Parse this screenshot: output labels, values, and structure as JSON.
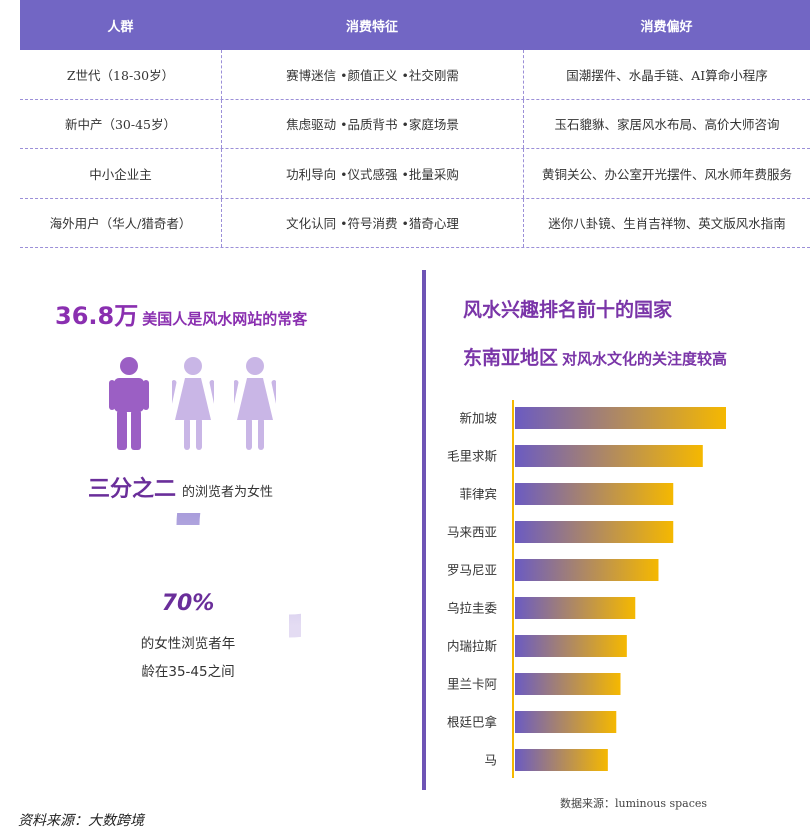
{
  "table": {
    "headers": [
      "人群",
      "消费特征",
      "消费偏好"
    ],
    "rows": [
      [
        "Z世代（18-30岁）",
        "赛博迷信 •颜值正义 •社交刚需",
        "国潮摆件、水晶手链、AI算命小程序"
      ],
      [
        "新中产（30-45岁）",
        "焦虑驱动 •品质背书 •家庭场景",
        "玉石貔貅、家居风水布局、高价大师咨询"
      ],
      [
        "中小企业主",
        "功利导向 •仪式感强 •批量采购",
        "黄铜关公、办公室开光摆件、风水师年费服务"
      ],
      [
        "海外用户（华人/猎奇者）",
        "文化认同 •符号消费 •猎奇心理",
        "迷你八卦镜、生肖吉祥物、英文版风水指南"
      ]
    ]
  },
  "left": {
    "stat_number": "36.8万",
    "stat_text": "美国人是风水网站的常客",
    "people_icons": [
      "male-icon",
      "female-icon",
      "female-icon"
    ],
    "fraction_big": "三分之二",
    "fraction_text": "的浏览者为女性",
    "ring_percent": "70%",
    "ring_value": 0.7,
    "ring_line1": "的女性浏览者年",
    "ring_line2": "龄在35-45之间"
  },
  "right": {
    "title1": "风水兴趣排名前十的国家",
    "title2_big": "东南亚地区",
    "title2_small": "对风水文化的关注度较高"
  },
  "chart_data": {
    "type": "bar",
    "orientation": "horizontal",
    "title": "风水兴趣排名前十的国家",
    "categories": [
      "新加坡",
      "毛里求斯",
      "菲律宾",
      "马来西亚",
      "罗马尼亚",
      "乌拉圭委",
      "内瑞拉斯",
      "里兰卡阿",
      "根廷巴拿",
      "马"
    ],
    "values": [
      100,
      89,
      75,
      75,
      68,
      57,
      53,
      50,
      48,
      44
    ],
    "xlim": [
      0,
      100
    ],
    "grid": false,
    "legend": "none",
    "colors": {
      "bar_start": "#6b5bc2",
      "bar_end": "#f5b800"
    }
  },
  "colors": {
    "accent": "#7266c4",
    "title_purple": "#8a2fb0",
    "divider": "#6e54b5"
  },
  "source": "数据来源：luminous spaces",
  "footer": "资料来源：大数跨境"
}
